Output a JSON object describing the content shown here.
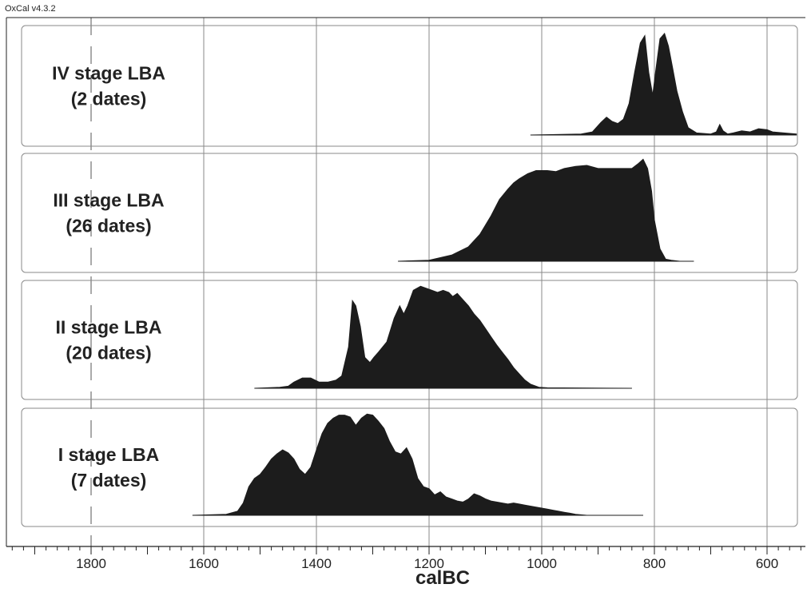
{
  "app": {
    "version_label": "OxCal v4.3.2"
  },
  "chart_data": {
    "type": "area",
    "title": "",
    "xlabel": "calBC",
    "ylabel": "",
    "x_direction": "descending",
    "xlim": [
      1950,
      540
    ],
    "x_ticks": [
      1800,
      1600,
      1400,
      1200,
      1000,
      800,
      600
    ],
    "grid": true,
    "legend": "none",
    "fill_color": "#1c1c1c",
    "series": [
      {
        "name": "IV stage LBA (2 dates)",
        "label_lines": [
          "IV stage LBA",
          "(2 dates)"
        ],
        "x": [
          1020,
          930,
          910,
          895,
          885,
          875,
          865,
          855,
          845,
          835,
          825,
          817,
          810,
          803,
          798,
          790,
          782,
          775,
          768,
          760,
          750,
          740,
          725,
          700,
          690,
          684,
          678,
          670,
          660,
          645,
          630,
          615,
          600,
          590,
          570,
          548
        ],
        "y": [
          0,
          0.01,
          0.03,
          0.12,
          0.17,
          0.13,
          0.11,
          0.15,
          0.3,
          0.6,
          0.88,
          0.95,
          0.6,
          0.38,
          0.6,
          0.92,
          0.97,
          0.85,
          0.65,
          0.42,
          0.22,
          0.07,
          0.02,
          0.01,
          0.03,
          0.1,
          0.04,
          0.01,
          0.02,
          0.04,
          0.03,
          0.06,
          0.05,
          0.03,
          0.02,
          0.01
        ]
      },
      {
        "name": "III stage LBA (26 dates)",
        "label_lines": [
          "III stage LBA",
          "(26 dates)"
        ],
        "x": [
          1255,
          1200,
          1160,
          1130,
          1110,
          1090,
          1075,
          1060,
          1050,
          1040,
          1025,
          1010,
          990,
          975,
          960,
          940,
          920,
          900,
          880,
          860,
          840,
          828,
          820,
          812,
          805,
          800,
          790,
          780,
          770,
          755,
          730
        ],
        "y": [
          0,
          0.01,
          0.06,
          0.14,
          0.26,
          0.44,
          0.6,
          0.7,
          0.76,
          0.8,
          0.85,
          0.88,
          0.88,
          0.87,
          0.9,
          0.92,
          0.93,
          0.9,
          0.9,
          0.9,
          0.9,
          0.95,
          0.99,
          0.9,
          0.68,
          0.4,
          0.12,
          0.02,
          0.01,
          0,
          0
        ]
      },
      {
        "name": "II stage LBA (20 dates)",
        "label_lines": [
          "II stage LBA",
          "(20 dates)"
        ],
        "x": [
          1510,
          1465,
          1450,
          1440,
          1425,
          1410,
          1395,
          1380,
          1365,
          1355,
          1343,
          1336,
          1330,
          1322,
          1314,
          1305,
          1298,
          1290,
          1275,
          1262,
          1252,
          1245,
          1238,
          1228,
          1215,
          1205,
          1195,
          1185,
          1175,
          1165,
          1158,
          1150,
          1140,
          1130,
          1120,
          1110,
          1100,
          1090,
          1080,
          1070,
          1060,
          1050,
          1040,
          1030,
          1020,
          1005,
          990,
          840
        ],
        "y": [
          0,
          0.01,
          0.02,
          0.06,
          0.1,
          0.1,
          0.06,
          0.06,
          0.08,
          0.12,
          0.4,
          0.85,
          0.8,
          0.6,
          0.3,
          0.25,
          0.3,
          0.35,
          0.45,
          0.68,
          0.8,
          0.72,
          0.8,
          0.95,
          0.99,
          0.97,
          0.95,
          0.93,
          0.95,
          0.93,
          0.89,
          0.92,
          0.86,
          0.8,
          0.72,
          0.66,
          0.58,
          0.5,
          0.42,
          0.35,
          0.28,
          0.2,
          0.14,
          0.08,
          0.04,
          0.01,
          0.005,
          0
        ]
      },
      {
        "name": "I stage LBA (7 dates)",
        "label_lines": [
          "I stage LBA",
          "(7 dates)"
        ],
        "x": [
          1620,
          1560,
          1540,
          1530,
          1520,
          1510,
          1500,
          1490,
          1480,
          1470,
          1460,
          1450,
          1440,
          1430,
          1420,
          1410,
          1400,
          1390,
          1380,
          1370,
          1360,
          1350,
          1340,
          1330,
          1320,
          1310,
          1300,
          1290,
          1280,
          1270,
          1260,
          1250,
          1240,
          1230,
          1220,
          1210,
          1200,
          1190,
          1180,
          1170,
          1160,
          1150,
          1140,
          1130,
          1120,
          1110,
          1100,
          1090,
          1080,
          1070,
          1060,
          1050,
          1040,
          1030,
          1020,
          1010,
          1000,
          990,
          980,
          970,
          960,
          950,
          940,
          930,
          920,
          900,
          880,
          860,
          840,
          820
        ],
        "y": [
          0,
          0.01,
          0.04,
          0.12,
          0.28,
          0.36,
          0.4,
          0.47,
          0.55,
          0.6,
          0.64,
          0.61,
          0.55,
          0.45,
          0.4,
          0.47,
          0.64,
          0.8,
          0.9,
          0.95,
          0.98,
          0.98,
          0.96,
          0.88,
          0.95,
          0.99,
          0.98,
          0.92,
          0.85,
          0.72,
          0.62,
          0.6,
          0.66,
          0.55,
          0.36,
          0.28,
          0.26,
          0.2,
          0.23,
          0.18,
          0.16,
          0.14,
          0.13,
          0.16,
          0.21,
          0.19,
          0.16,
          0.14,
          0.13,
          0.12,
          0.11,
          0.12,
          0.11,
          0.1,
          0.09,
          0.08,
          0.07,
          0.06,
          0.05,
          0.04,
          0.03,
          0.02,
          0.01,
          0.005,
          0,
          0,
          0,
          0,
          0,
          0
        ]
      }
    ]
  }
}
